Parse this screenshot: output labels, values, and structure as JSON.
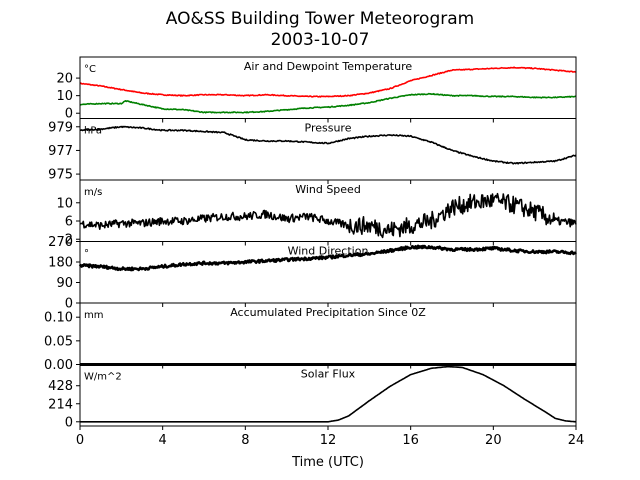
{
  "figure": {
    "title_line1": "AO&SS Building Tower Meteorogram",
    "title_line2": "2003-10-07"
  },
  "chart_data": {
    "type": "line",
    "title": "AO&SS Building Tower Meteorogram 2003-10-07",
    "xlabel": "Time (UTC)",
    "xlim": [
      0,
      24
    ],
    "xticks": [
      0,
      4,
      8,
      12,
      16,
      20,
      24
    ],
    "panels": [
      {
        "id": "temp",
        "title": "Air and Dewpoint Temperature",
        "unit": "°C",
        "ylim": [
          -3,
          32
        ],
        "yticks": [
          0,
          10,
          20
        ],
        "series": [
          {
            "name": "Air Temperature",
            "color": "#ff0000",
            "x": [
              0,
              1,
              2,
              3,
              4,
              5,
              6,
              7,
              8,
              9,
              10,
              11,
              12,
              13,
              14,
              15,
              16,
              17,
              18,
              19,
              20,
              21,
              22,
              23,
              24
            ],
            "y": [
              17,
              15.5,
              13.5,
              11.5,
              10.5,
              10,
              10.5,
              10.5,
              10,
              10.5,
              10,
              9.5,
              9.5,
              10,
              11.5,
              14,
              18.5,
              21.5,
              24.5,
              25,
              25.5,
              26,
              25.5,
              24.5,
              23.5
            ]
          },
          {
            "name": "Dewpoint Temperature",
            "color": "#008000",
            "x": [
              0,
              1,
              2,
              2.2,
              3,
              4,
              5,
              6,
              7,
              8,
              9,
              10,
              11,
              12,
              13,
              14,
              15,
              16,
              17,
              18,
              19,
              20,
              21,
              22,
              23,
              24
            ],
            "y": [
              5,
              5.5,
              5.5,
              7,
              5,
              2.5,
              2,
              0.5,
              0.5,
              0.5,
              1,
              2,
              3,
              3.5,
              4.5,
              6,
              8.5,
              10.5,
              11,
              10,
              10,
              9.5,
              9.5,
              9,
              9,
              9.5
            ]
          }
        ]
      },
      {
        "id": "pressure",
        "title": "Pressure",
        "unit": "hPa",
        "ylim": [
          974.5,
          979.7
        ],
        "yticks": [
          975,
          977,
          979
        ],
        "series": [
          {
            "name": "Pressure",
            "color": "#000000",
            "x": [
              0,
              1,
              2,
              3,
              4,
              5,
              6,
              7,
              8,
              9,
              10,
              11,
              12,
              13,
              14,
              15,
              16,
              17,
              18,
              19,
              20,
              21,
              22,
              23,
              24
            ],
            "y": [
              978.7,
              978.8,
              979.0,
              978.9,
              978.7,
              978.7,
              978.6,
              978.5,
              977.9,
              977.8,
              977.8,
              977.7,
              977.6,
              978.0,
              978.2,
              978.3,
              978.2,
              977.7,
              977.0,
              976.5,
              976.1,
              975.9,
              976.0,
              976.1,
              976.6
            ]
          }
        ]
      },
      {
        "id": "wind_speed",
        "title": "Wind Speed",
        "unit": "m/s",
        "ylim": [
          1.5,
          15
        ],
        "yticks": [
          2,
          6,
          10
        ],
        "series": [
          {
            "name": "Wind Speed",
            "color": "#000000",
            "x": [
              0,
              1,
              2,
              3,
              4,
              5,
              6,
              7,
              8,
              9,
              10,
              11,
              12,
              13,
              14,
              15,
              16,
              17,
              18,
              19,
              20,
              21,
              22,
              23,
              24
            ],
            "y": [
              5.5,
              5,
              5.5,
              5.5,
              6,
              6,
              6.5,
              7,
              7,
              7.5,
              6.5,
              7,
              6,
              5,
              5,
              4,
              5,
              6,
              9,
              10,
              10.5,
              9.5,
              8,
              6,
              5.5
            ]
          }
        ]
      },
      {
        "id": "wind_dir",
        "title": "Wind Direction",
        "unit": "°",
        "ylim": [
          0,
          270
        ],
        "yticks": [
          0,
          90,
          180,
          270
        ],
        "series": [
          {
            "name": "Wind Direction",
            "color": "#000000",
            "x": [
              0,
              1,
              2,
              3,
              4,
              5,
              6,
              7,
              8,
              9,
              10,
              11,
              12,
              13,
              14,
              15,
              16,
              17,
              18,
              19,
              20,
              21,
              22,
              23,
              24
            ],
            "y": [
              165,
              160,
              150,
              150,
              160,
              170,
              175,
              175,
              180,
              185,
              190,
              195,
              200,
              210,
              215,
              230,
              245,
              245,
              235,
              235,
              240,
              230,
              225,
              225,
              220
            ]
          }
        ]
      },
      {
        "id": "precip",
        "title": "Accumulated Precipitation Since 0Z",
        "unit": "mm",
        "ylim": [
          0,
          0.13
        ],
        "yticks": [
          0,
          0.05,
          0.1
        ],
        "ytick_labels": [
          "0.00",
          "0.05",
          "0.10"
        ],
        "series": [
          {
            "name": "Accumulated Precipitation",
            "color": "#000000",
            "x": [
              0,
              24
            ],
            "y": [
              0,
              0
            ]
          }
        ]
      },
      {
        "id": "solar",
        "title": "Solar Flux",
        "unit": "W/m^2",
        "ylim": [
          -50,
          680
        ],
        "yticks": [
          0,
          214,
          428
        ],
        "series": [
          {
            "name": "Solar Flux",
            "color": "#000000",
            "x": [
              0,
              12,
              12.5,
              13,
              14,
              15,
              16,
              17,
              17.8,
              18.5,
              19.5,
              20.5,
              21.5,
              22.5,
              23,
              23.5,
              24
            ],
            "y": [
              0,
              0,
              20,
              70,
              250,
              420,
              560,
              635,
              655,
              645,
              560,
              430,
              270,
              120,
              40,
              10,
              0
            ]
          }
        ]
      }
    ]
  }
}
